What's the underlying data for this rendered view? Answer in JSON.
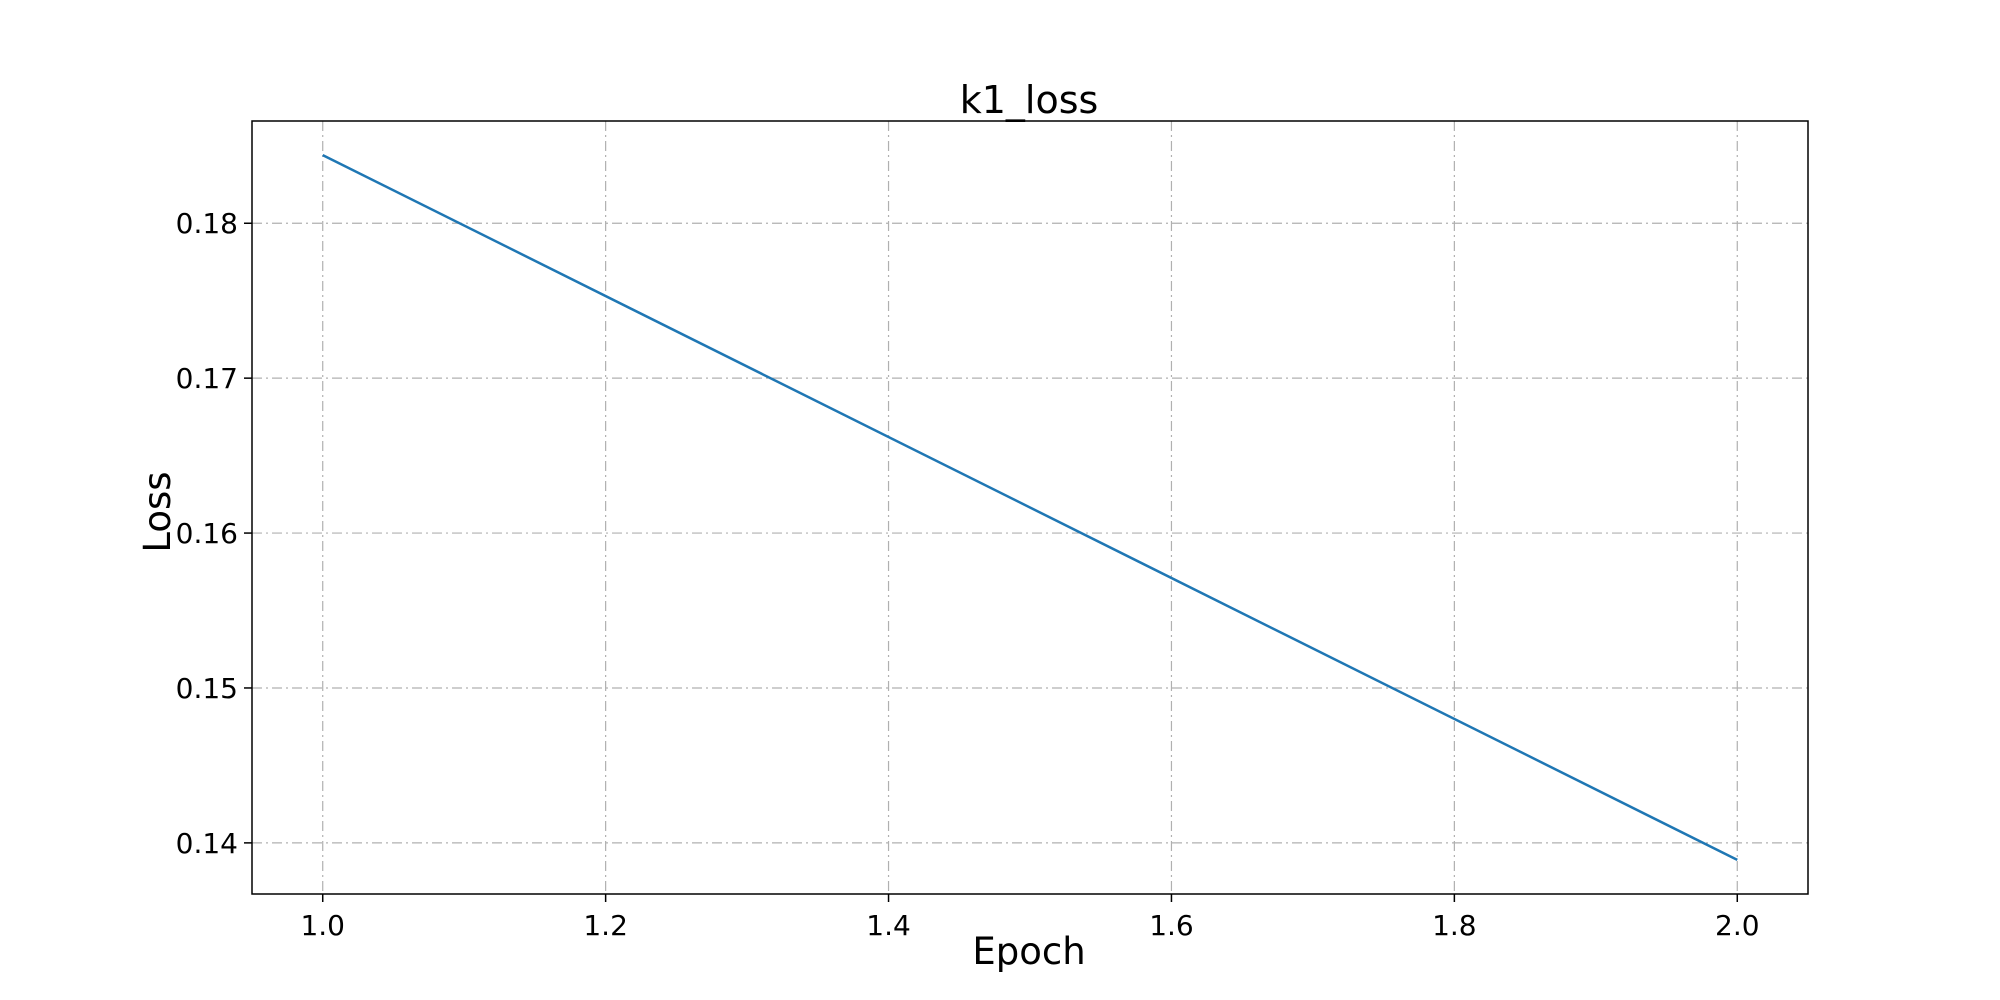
{
  "chart_data": {
    "type": "line",
    "title": "k1_loss",
    "xlabel": "Epoch",
    "ylabel": "Loss",
    "xlim": [
      0.95,
      2.05
    ],
    "ylim": [
      0.1367,
      0.1866
    ],
    "xticks": [
      1.0,
      1.2,
      1.4,
      1.6,
      1.8,
      2.0
    ],
    "xtick_labels": [
      "1.0",
      "1.2",
      "1.4",
      "1.6",
      "1.8",
      "2.0"
    ],
    "yticks": [
      0.14,
      0.15,
      0.16,
      0.17,
      0.18
    ],
    "ytick_labels": [
      "0.14",
      "0.15",
      "0.16",
      "0.17",
      "0.18"
    ],
    "grid": true,
    "grid_style": "dashdot",
    "legend": "none",
    "series": [
      {
        "x": [
          1.0,
          2.0
        ],
        "y": [
          0.1844,
          0.1389
        ],
        "color": "#1f77b4"
      }
    ]
  }
}
